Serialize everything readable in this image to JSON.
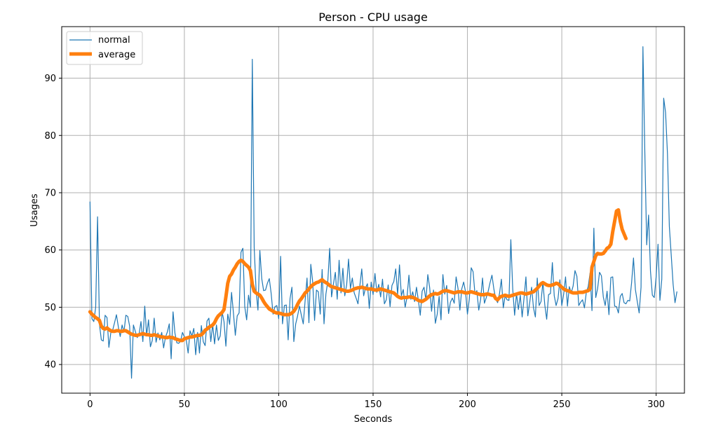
{
  "chart_data": {
    "type": "line",
    "title": "Person - CPU usage",
    "xlabel": "Seconds",
    "ylabel": "Usages",
    "xlim": [
      -15,
      315
    ],
    "ylim": [
      35,
      99
    ],
    "xticks": [
      0,
      50,
      100,
      150,
      200,
      250,
      300
    ],
    "yticks": [
      40,
      50,
      60,
      70,
      80,
      90
    ],
    "xtick_labels": [
      "0",
      "50",
      "100",
      "150",
      "200",
      "250",
      "300"
    ],
    "ytick_labels": [
      "40",
      "50",
      "60",
      "70",
      "80",
      "90"
    ],
    "grid": true,
    "legend_position": "top-left",
    "series": [
      {
        "name": "normal",
        "color": "#1f77b4",
        "x_start": 0,
        "x_step": 1,
        "values": [
          68.4,
          48.0,
          47.5,
          50.0,
          65.8,
          47.0,
          44.3,
          44.1,
          48.6,
          48.2,
          43.0,
          45.5,
          46.0,
          47.3,
          48.7,
          46.6,
          44.9,
          46.9,
          45.7,
          48.6,
          48.4,
          46.7,
          37.6,
          46.9,
          45.8,
          44.7,
          45.3,
          47.5,
          44.0,
          50.2,
          45.1,
          47.8,
          43.1,
          44.2,
          48.1,
          43.9,
          45.5,
          44.3,
          45.6,
          42.9,
          44.8,
          45.7,
          47.1,
          41.0,
          49.2,
          45.5,
          43.8,
          43.7,
          44.1,
          45.6,
          44.8,
          44.3,
          42.0,
          45.9,
          45.0,
          46.3,
          41.7,
          45.6,
          42.0,
          46.8,
          44.0,
          43.3,
          47.6,
          48.1,
          44.0,
          47.0,
          43.6,
          46.9,
          44.2,
          45.0,
          49.2,
          47.5,
          43.2,
          48.8,
          47.0,
          52.6,
          49.0,
          45.1,
          48.5,
          49.0,
          59.6,
          60.3,
          50.1,
          47.8,
          52.1,
          50.0,
          93.3,
          60.4,
          53.0,
          49.5,
          59.9,
          55.0,
          52.9,
          53.0,
          54.2,
          55.0,
          52.4,
          48.8,
          50.1,
          50.3,
          48.0,
          58.9,
          47.1,
          50.3,
          50.4,
          44.3,
          51.5,
          53.5,
          44.0,
          47.1,
          48.5,
          50.2,
          48.6,
          47.1,
          51.2,
          55.1,
          47.3,
          57.5,
          54.4,
          47.7,
          53.0,
          52.7,
          48.8,
          56.6,
          47.1,
          52.3,
          54.5,
          60.3,
          51.8,
          54.1,
          56.1,
          51.4,
          58.2,
          52.5,
          56.8,
          52.0,
          53.9,
          58.4,
          53.3,
          55.1,
          52.5,
          51.6,
          50.6,
          53.8,
          56.7,
          52.0,
          53.4,
          54.1,
          49.8,
          54.4,
          52.2,
          55.9,
          52.6,
          54.0,
          51.8,
          54.9,
          50.6,
          51.3,
          53.9,
          50.1,
          53.8,
          54.5,
          56.7,
          52.2,
          57.4,
          52.0,
          53.1,
          50.0,
          51.8,
          55.6,
          51.4,
          52.7,
          51.0,
          53.5,
          51.2,
          48.6,
          52.8,
          53.5,
          51.2,
          55.7,
          53.4,
          49.3,
          53.0,
          47.2,
          48.8,
          51.9,
          47.8,
          55.7,
          52.3,
          53.8,
          48.9,
          50.9,
          51.6,
          50.7,
          55.3,
          53.3,
          49.5,
          53.2,
          54.4,
          52.7,
          48.8,
          51.4,
          56.9,
          56.2,
          52.3,
          52.9,
          49.5,
          51.4,
          55.1,
          50.7,
          51.7,
          52.8,
          54.3,
          55.6,
          53.2,
          51.4,
          50.8,
          52.4,
          54.9,
          49.9,
          52.0,
          51.3,
          51.2,
          61.8,
          53.2,
          48.6,
          52.4,
          49.6,
          52.1,
          48.3,
          51.6,
          55.3,
          48.5,
          50.8,
          53.5,
          49.9,
          48.3,
          55.1,
          50.3,
          51.0,
          54.4,
          50.4,
          47.9,
          52.2,
          52.4,
          57.8,
          52.0,
          50.3,
          51.5,
          54.8,
          50.3,
          52.3,
          55.3,
          50.2,
          53.6,
          52.5,
          53.7,
          56.4,
          55.4,
          50.3,
          50.9,
          51.3,
          49.9,
          52.6,
          53.6,
          56.0,
          49.4,
          63.8,
          51.7,
          53.3,
          56.1,
          55.5,
          51.8,
          50.3,
          52.8,
          48.7,
          55.2,
          55.3,
          50.2,
          50.1,
          49.0,
          51.9,
          52.4,
          50.8,
          50.6,
          51.2,
          51.1,
          54.3,
          58.6,
          53.1,
          51.0,
          49.0,
          53.5,
          95.5,
          77.2,
          60.9,
          66.1,
          56.3,
          52.1,
          51.7,
          55.3,
          61.0,
          51.2,
          54.9,
          86.5,
          84.0,
          76.8,
          64.1,
          59.1,
          54.0,
          50.8,
          52.7
        ]
      },
      {
        "name": "average",
        "color": "#ff7f0e",
        "x_start": 0,
        "x_step": 1,
        "values": [
          49.2,
          48.8,
          48.5,
          48.2,
          48.0,
          47.7,
          46.7,
          46.3,
          46.2,
          46.4,
          46.1,
          45.9,
          45.8,
          45.8,
          45.9,
          45.9,
          45.8,
          45.8,
          45.9,
          45.9,
          45.7,
          45.5,
          45.3,
          45.2,
          45.1,
          45.1,
          45.2,
          45.3,
          45.4,
          45.3,
          45.2,
          45.2,
          45.1,
          45.1,
          45.2,
          45.1,
          45.0,
          44.9,
          44.8,
          44.8,
          44.7,
          44.7,
          44.8,
          44.7,
          44.7,
          44.5,
          44.4,
          44.3,
          44.2,
          44.2,
          44.5,
          44.6,
          44.7,
          44.8,
          44.8,
          44.9,
          45.0,
          45.1,
          45.1,
          45.2,
          45.5,
          46.0,
          46.2,
          46.5,
          46.7,
          46.9,
          47.3,
          48.0,
          48.5,
          48.8,
          49.1,
          49.6,
          51.8,
          54.2,
          55.4,
          55.8,
          56.5,
          57.0,
          57.6,
          58.0,
          58.2,
          58.0,
          57.6,
          57.3,
          57.0,
          56.4,
          54.0,
          52.8,
          52.5,
          52.3,
          52.1,
          51.6,
          51.0,
          50.5,
          50.1,
          49.7,
          49.5,
          49.3,
          49.1,
          49.0,
          49.0,
          48.9,
          48.8,
          48.7,
          48.7,
          48.7,
          48.8,
          49.0,
          49.3,
          49.8,
          50.5,
          51.1,
          51.5,
          52.0,
          52.5,
          52.8,
          53.2,
          53.6,
          53.9,
          54.1,
          54.3,
          54.4,
          54.6,
          54.8,
          54.5,
          54.3,
          54.1,
          53.8,
          53.6,
          53.5,
          53.4,
          53.3,
          53.2,
          53.1,
          53.0,
          52.9,
          52.8,
          52.8,
          52.9,
          53.0,
          53.2,
          53.3,
          53.4,
          53.4,
          53.5,
          53.4,
          53.3,
          53.2,
          53.2,
          53.2,
          53.1,
          53.0,
          53.0,
          53.1,
          53.2,
          53.1,
          53.0,
          52.9,
          52.8,
          52.7,
          52.6,
          52.5,
          52.2,
          51.9,
          51.7,
          51.6,
          51.7,
          51.7,
          51.7,
          51.8,
          51.8,
          51.7,
          51.6,
          51.4,
          51.2,
          51.1,
          51.0,
          51.2,
          51.4,
          51.7,
          52.0,
          52.2,
          52.3,
          52.4,
          52.3,
          52.4,
          52.6,
          52.8,
          52.9,
          52.9,
          52.8,
          52.7,
          52.6,
          52.5,
          52.6,
          52.7,
          52.7,
          52.7,
          52.6,
          52.5,
          52.5,
          52.6,
          52.7,
          52.6,
          52.5,
          52.4,
          52.3,
          52.2,
          52.2,
          52.2,
          52.3,
          52.3,
          52.2,
          52.1,
          52.1,
          51.5,
          51.3,
          51.7,
          51.9,
          52.0,
          52.1,
          52.0,
          51.9,
          52.0,
          52.1,
          52.2,
          52.3,
          52.4,
          52.5,
          52.5,
          52.4,
          52.3,
          52.4,
          52.5,
          52.6,
          52.7,
          53.0,
          53.3,
          53.7,
          54.1,
          54.3,
          54.1,
          53.9,
          53.8,
          53.8,
          53.9,
          54.0,
          54.2,
          54.1,
          53.8,
          53.5,
          53.2,
          53.0,
          52.9,
          52.8,
          52.6,
          52.5,
          52.5,
          52.5,
          52.6,
          52.6,
          52.6,
          52.7,
          52.8,
          52.9,
          53.2,
          57.0,
          58.0,
          59.0,
          59.4,
          59.3,
          59.3,
          59.4,
          59.8,
          60.3,
          60.5,
          61.0,
          63.2,
          65.0,
          66.8,
          67.0,
          65.0,
          63.6,
          62.8,
          62.0
        ]
      }
    ]
  }
}
